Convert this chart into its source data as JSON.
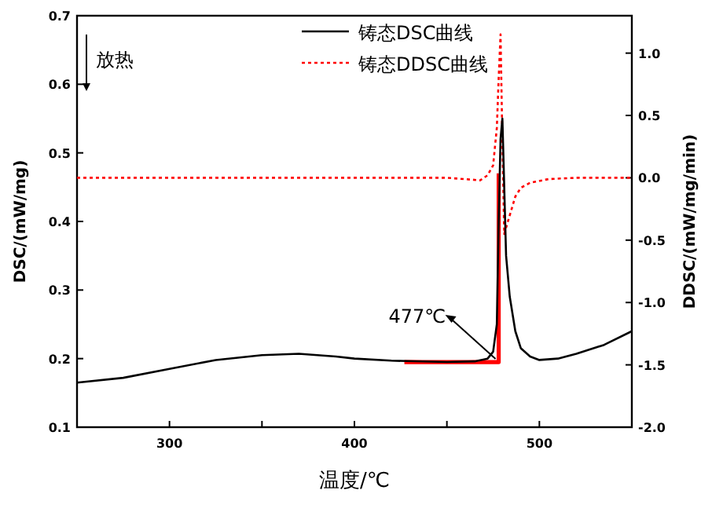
{
  "chart_data": {
    "type": "line",
    "xlabel": "温度/℃",
    "ylabel": "DSC/(mW/mg)",
    "y2label": "DDSC/(mW/mg/min)",
    "xlim": [
      250,
      550
    ],
    "xticks": [
      300,
      {
        "value": 350,
        "label": null
      },
      400,
      {
        "value": 450,
        "label": null
      },
      500
    ],
    "ylim": [
      0.1,
      0.7
    ],
    "yticks": [
      0.1,
      0.2,
      0.3,
      0.4,
      0.5,
      0.6,
      0.7
    ],
    "y2lim": [
      -2.0,
      1.3
    ],
    "y2ticks": [
      {
        "value": -2,
        "label": "-2.0"
      },
      {
        "value": -1.5,
        "label": "-1.5"
      },
      {
        "value": -1,
        "label": "-1.0"
      },
      {
        "value": -0.5,
        "label": "-0.5"
      },
      {
        "value": 0,
        "label": "0.0"
      },
      {
        "value": 0.5,
        "label": "0.5"
      },
      {
        "value": 1,
        "label": "1.0"
      }
    ],
    "legend": "top right",
    "grid": false,
    "annotations": [
      {
        "text": "477℃",
        "x": 478,
        "y": 0.195
      },
      "放热"
    ],
    "series": [
      {
        "name": "铸态DSC曲线",
        "color": "#000000",
        "line_style": "solid",
        "x": [
          250,
          275,
          300,
          325,
          350,
          370,
          390,
          400,
          420,
          450,
          465,
          472,
          475,
          477,
          478,
          479,
          480,
          481,
          482,
          484,
          487,
          490,
          495,
          500,
          510,
          520,
          535,
          550
        ],
        "values": [
          0.165,
          0.172,
          0.185,
          0.198,
          0.205,
          0.207,
          0.203,
          0.2,
          0.197,
          0.195,
          0.196,
          0.2,
          0.21,
          0.25,
          0.4,
          0.52,
          0.55,
          0.45,
          0.35,
          0.29,
          0.24,
          0.215,
          0.203,
          0.198,
          0.2,
          0.207,
          0.22,
          0.24
        ]
      },
      {
        "name": "铸态DDSC曲线",
        "color": "#ff0000",
        "line_style": "dotted",
        "axis": "y2",
        "x": [
          250,
          300,
          350,
          400,
          450,
          468,
          472,
          475,
          477,
          478,
          479,
          480,
          481,
          482,
          484,
          487,
          490,
          495,
          505,
          520,
          550
        ],
        "values": [
          0,
          0,
          0,
          0,
          0,
          -0.02,
          0.02,
          0.1,
          0.4,
          0.8,
          1.15,
          0.3,
          -0.45,
          -0.4,
          -0.3,
          -0.15,
          -0.08,
          -0.04,
          -0.01,
          0,
          0
        ]
      },
      {
        "color": "#ff0000",
        "line_style": "solid",
        "x": [
          427,
          478,
          478
        ],
        "values": [
          0.195,
          0.195,
          0.47
        ]
      }
    ]
  }
}
